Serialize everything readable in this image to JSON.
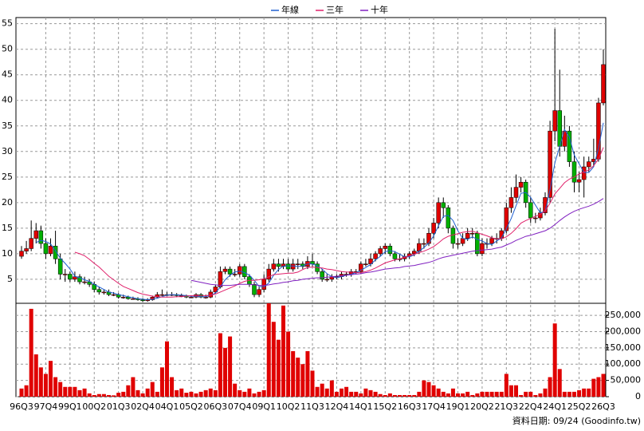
{
  "chart_data": {
    "type": "candlestick",
    "legend": "top",
    "grid": true,
    "note": "資料日期: 09/24 (Goodinfo.tw)",
    "up_color": "#e00000",
    "down_color": "#00b000",
    "volume_color": "#e00000",
    "categories": [
      "96Q3",
      null,
      null,
      null,
      null,
      "97Q4",
      null,
      null,
      null,
      null,
      "99Q1",
      null,
      null,
      null,
      null,
      "00Q2",
      null,
      null,
      null,
      null,
      "01Q3",
      null,
      null,
      null,
      null,
      "02Q4",
      null,
      null,
      null,
      null,
      "04Q1",
      null,
      null,
      null,
      null,
      "05Q2",
      null,
      null,
      null,
      null,
      "06Q3",
      null,
      null,
      null,
      null,
      "07Q4",
      null,
      null,
      null,
      null,
      "09Q1",
      null,
      null,
      null,
      null,
      "10Q2",
      null,
      null,
      null,
      null,
      "11Q3",
      null,
      null,
      null,
      null,
      "12Q4",
      null,
      null,
      null,
      null,
      "14Q1",
      null,
      null,
      null,
      null,
      "15Q2",
      null,
      null,
      null,
      null,
      "16Q3",
      null,
      null,
      null,
      null,
      "17Q4",
      null,
      null,
      null,
      null,
      "19Q1",
      null,
      null,
      null,
      null,
      "20Q2",
      null,
      null,
      null,
      null,
      "21Q3",
      null,
      null,
      null,
      null,
      "22Q4",
      null,
      null,
      null,
      null,
      "24Q1",
      null,
      null,
      null,
      null,
      "25Q2",
      null,
      null,
      null,
      null,
      "26Q3"
    ],
    "open": [
      9.5,
      10.5,
      11,
      13,
      14.5,
      12,
      10,
      11.5,
      9,
      6,
      6,
      5,
      5.5,
      4.5,
      4.5,
      4,
      3,
      2.5,
      2.5,
      2,
      2,
      1.5,
      1.5,
      1.2,
      1.2,
      1,
      0.8,
      1,
      1.5,
      2,
      2,
      2,
      2,
      1.8,
      1.8,
      1.5,
      1.5,
      2,
      1.5,
      1.5,
      2.5,
      3.5,
      6.5,
      7,
      6,
      6,
      7.5,
      5.5,
      4,
      2,
      3,
      5,
      7,
      8,
      7.5,
      8,
      7,
      8,
      8,
      7.5,
      8.5,
      8,
      6.5,
      5,
      5,
      5.5,
      5.5,
      6,
      6,
      6.5,
      6.5,
      8,
      8,
      9,
      10,
      11,
      11.5,
      10,
      9,
      9,
      9.5,
      10,
      10.5,
      12,
      12,
      14,
      16,
      20,
      19,
      15,
      12,
      12,
      13,
      14,
      14,
      10,
      12,
      12,
      13,
      13,
      14.5,
      19,
      21,
      23,
      24,
      20,
      17,
      17,
      18,
      21,
      34,
      38,
      31,
      34,
      28,
      24,
      24.5,
      27,
      28,
      28.5,
      39.5
    ],
    "high": [
      11.5,
      12.5,
      16.5,
      16,
      15.5,
      13,
      13,
      14.5,
      10,
      7,
      6.5,
      6.5,
      6,
      5.5,
      5,
      4.5,
      3.5,
      3,
      3,
      2.5,
      2.3,
      2,
      1.8,
      1.6,
      1.5,
      1.3,
      1.3,
      1.8,
      2.5,
      3,
      2.5,
      2.5,
      2.3,
      2.2,
      2,
      1.8,
      2.3,
      2.3,
      2,
      3,
      4,
      7.5,
      7.5,
      7.5,
      7,
      8,
      8,
      6,
      4.5,
      3.5,
      6,
      8,
      9,
      9,
      9,
      9,
      9,
      9,
      8.5,
      9.5,
      10,
      8.5,
      7,
      6,
      6,
      6,
      6.5,
      6.5,
      7,
      7,
      8.5,
      9,
      10,
      10.5,
      11.5,
      12,
      12,
      10.5,
      10,
      10,
      10.5,
      11,
      13,
      13,
      15,
      17,
      21,
      21,
      19.5,
      15.5,
      13,
      14,
      15,
      15,
      14.5,
      13,
      13,
      13.5,
      14,
      15,
      20,
      23,
      25.5,
      25,
      24.5,
      21,
      18,
      19,
      22,
      36,
      54,
      46,
      37,
      35,
      30,
      26,
      29,
      29,
      32.5,
      40.5,
      50
    ],
    "low": [
      9,
      10,
      10.5,
      12,
      11,
      9,
      9.5,
      8,
      5,
      4.5,
      4.5,
      4.5,
      4,
      4,
      3.5,
      2.5,
      2,
      2,
      1.7,
      1.7,
      1.2,
      1.2,
      1,
      1,
      0.8,
      0.6,
      0.6,
      0.8,
      1.3,
      1.7,
      1.7,
      1.7,
      1.5,
      1.5,
      1.3,
      1.3,
      1.3,
      1.3,
      1.2,
      1.3,
      2.2,
      3.2,
      6,
      5.5,
      5.5,
      5.5,
      5,
      3.5,
      1.5,
      1.5,
      2.5,
      4.5,
      6.5,
      6.5,
      7,
      6.5,
      6.5,
      7,
      7,
      7,
      7.5,
      6,
      4.5,
      4.5,
      4.5,
      5,
      5,
      5.5,
      5.5,
      6,
      6,
      7.5,
      7.5,
      8.5,
      9.5,
      10,
      9.5,
      8.5,
      8.5,
      8.5,
      9,
      9.5,
      10,
      11,
      11.5,
      13,
      15,
      17,
      14,
      11,
      11,
      11.5,
      12.5,
      13,
      9.5,
      9.5,
      11,
      11.5,
      12,
      12.5,
      14,
      18,
      20,
      22,
      19,
      16,
      16,
      16.5,
      17.5,
      20,
      32,
      29,
      30,
      27,
      22,
      22,
      21,
      26,
      27,
      28,
      39
    ],
    "close": [
      10.5,
      11,
      13,
      14.5,
      12,
      10,
      11.5,
      9,
      6,
      6,
      5,
      5.5,
      4.5,
      4.5,
      4,
      3,
      2.5,
      2.5,
      2,
      2,
      1.5,
      1.5,
      1.2,
      1.2,
      1,
      0.8,
      1,
      1.5,
      2,
      2,
      2,
      2,
      1.8,
      1.8,
      1.5,
      1.5,
      2,
      1.5,
      1.5,
      2.5,
      3.5,
      6.5,
      7,
      6,
      6,
      7.5,
      5.5,
      4,
      2,
      3,
      5,
      7,
      8,
      7.5,
      8,
      7,
      8,
      8,
      7.5,
      8.5,
      8,
      6.5,
      5,
      5,
      5.5,
      5.5,
      6,
      6,
      6.5,
      6.5,
      8,
      8,
      9,
      10,
      11,
      11.5,
      10,
      9,
      9,
      9.5,
      10,
      10.5,
      12,
      12,
      14,
      16,
      20,
      19,
      15,
      12,
      12,
      13,
      14,
      14,
      10,
      12,
      12,
      13,
      13,
      14.5,
      19,
      21,
      23,
      24,
      20,
      17,
      17,
      18,
      21,
      34,
      38,
      31,
      34,
      28,
      24,
      24.5,
      27,
      28,
      28.5,
      39.5,
      47
    ],
    "volume": [
      25000,
      35000,
      270000,
      130000,
      90000,
      70000,
      110000,
      60000,
      45000,
      30000,
      30000,
      30000,
      20000,
      25000,
      10000,
      5000,
      8000,
      8000,
      5000,
      4000,
      12000,
      15000,
      35000,
      60000,
      20000,
      10000,
      25000,
      45000,
      15000,
      90000,
      170000,
      60000,
      20000,
      25000,
      12000,
      15000,
      10000,
      15000,
      20000,
      25000,
      20000,
      195000,
      150000,
      185000,
      40000,
      20000,
      15000,
      25000,
      10000,
      15000,
      20000,
      287000,
      230000,
      175000,
      280000,
      200000,
      140000,
      120000,
      100000,
      140000,
      80000,
      30000,
      40000,
      25000,
      50000,
      15000,
      25000,
      30000,
      15000,
      15000,
      10000,
      25000,
      20000,
      15000,
      8000,
      5000,
      10000,
      5000,
      5000,
      5000,
      5000,
      5000,
      15000,
      50000,
      45000,
      35000,
      25000,
      15000,
      10000,
      25000,
      10000,
      10000,
      15000,
      5000,
      10000,
      15000,
      15000,
      15000,
      15000,
      15000,
      70000,
      35000,
      35000,
      5000,
      15000,
      15000,
      5000,
      10000,
      25000,
      60000,
      225000,
      85000,
      15000,
      15000,
      15000,
      20000,
      25000,
      25000,
      55000,
      60000,
      70000
    ],
    "series": [
      {
        "name": "年線",
        "color": "#2060d0",
        "values": [
          null,
          null,
          null,
          12.2,
          12.6,
          12.4,
          11.9,
          10.6,
          9.1,
          8.1,
          7,
          5.6,
          5.3,
          4.9,
          4.6,
          4,
          3.5,
          3,
          2.5,
          2.3,
          2,
          1.8,
          1.6,
          1.4,
          1.2,
          1.1,
          1,
          1.1,
          1.3,
          1.6,
          1.9,
          2,
          1.95,
          1.9,
          1.8,
          1.65,
          1.7,
          1.6,
          1.6,
          1.9,
          2.3,
          3.5,
          4.9,
          5.8,
          6.4,
          6.6,
          6.3,
          5.8,
          4.8,
          3.6,
          3.5,
          4.3,
          5.8,
          6.9,
          7.6,
          7.6,
          7.6,
          7.5,
          7.6,
          8,
          8,
          7.6,
          7,
          6.1,
          5.5,
          5.3,
          5.5,
          5.8,
          6,
          6.3,
          6.8,
          7.3,
          7.9,
          8.8,
          9.5,
          10.4,
          10.6,
          10.4,
          9.9,
          9.4,
          9.4,
          9.8,
          10.5,
          11.2,
          12.1,
          13.5,
          15.5,
          17.3,
          17.5,
          16.5,
          14.5,
          13,
          12.8,
          13.3,
          12.8,
          12.5,
          12,
          11.8,
          12.5,
          13.1,
          14.9,
          16.9,
          19.4,
          21.8,
          22,
          21,
          19.5,
          18,
          18.3,
          22.5,
          27.8,
          31,
          34.3,
          32.8,
          29.3,
          27.6,
          25.9,
          25.9,
          27,
          30.6,
          35.6
        ]
      },
      {
        "name": "三年",
        "color": "#e0206a",
        "values": [
          null,
          null,
          null,
          null,
          null,
          null,
          null,
          null,
          null,
          null,
          null,
          10.3,
          10,
          9.6,
          8.9,
          8.1,
          7.4,
          6.5,
          5.6,
          4.9,
          4.2,
          3.6,
          3.2,
          2.8,
          2.4,
          2.1,
          1.9,
          1.7,
          1.6,
          1.5,
          1.5,
          1.5,
          1.6,
          1.6,
          1.7,
          1.8,
          1.8,
          1.8,
          1.8,
          1.9,
          2.1,
          2.5,
          2.9,
          3.3,
          3.7,
          4.2,
          4.6,
          4.8,
          4.8,
          4.9,
          5.1,
          5.5,
          5.9,
          6,
          6.1,
          6.2,
          6.2,
          6.4,
          6.9,
          7.3,
          7.4,
          7.3,
          7.2,
          7,
          6.9,
          6.7,
          6.5,
          6.4,
          6.4,
          6.3,
          6.3,
          6.5,
          6.8,
          7.2,
          7.7,
          8.2,
          8.5,
          8.8,
          9,
          9.3,
          9.6,
          9.9,
          10.2,
          10.5,
          10.9,
          11.4,
          12.1,
          12.9,
          13.4,
          13.7,
          13.9,
          14.2,
          14.3,
          14.4,
          14.1,
          13.8,
          13.5,
          13.1,
          12.9,
          12.9,
          13.3,
          14,
          14.9,
          16,
          16.5,
          16.9,
          17.3,
          17.7,
          18.4,
          19.9,
          21.7,
          22.8,
          23.9,
          24.6,
          25,
          25.6,
          26,
          26.4,
          27.2,
          28.5,
          30.8
        ]
      },
      {
        "name": "十年",
        "color": "#8020c0",
        "values": [
          null,
          null,
          null,
          null,
          null,
          null,
          null,
          null,
          null,
          null,
          null,
          null,
          null,
          null,
          null,
          null,
          null,
          null,
          null,
          null,
          null,
          null,
          null,
          null,
          null,
          null,
          null,
          null,
          null,
          null,
          null,
          null,
          null,
          null,
          null,
          4.8,
          4.6,
          4.4,
          4.2,
          4,
          3.9,
          3.8,
          3.8,
          3.8,
          3.9,
          4,
          4,
          4,
          3.9,
          3.8,
          3.8,
          3.9,
          4.1,
          4.2,
          4.4,
          4.5,
          4.7,
          4.8,
          5,
          5.1,
          5.2,
          5.3,
          5.3,
          5.4,
          5.5,
          5.6,
          5.7,
          5.8,
          5.9,
          6,
          6.1,
          6.3,
          6.4,
          6.6,
          6.8,
          7,
          7.1,
          7.2,
          7.3,
          7.5,
          7.6,
          7.7,
          7.9,
          8.1,
          8.3,
          8.6,
          9,
          9.3,
          9.5,
          9.7,
          9.9,
          10.1,
          10.3,
          10.5,
          10.6,
          10.7,
          10.8,
          10.9,
          11.1,
          11.3,
          11.7,
          12.1,
          12.6,
          13,
          13.4,
          13.6,
          13.9,
          14.2,
          14.5,
          15,
          15.7,
          16.5,
          17.2,
          17.8,
          18.3,
          18.7,
          19,
          19.3,
          19.7,
          20.2,
          20.8
        ]
      }
    ],
    "ylim": [
      0.3,
      56.2
    ],
    "yticks": [
      5,
      10,
      15,
      20,
      25,
      30,
      35,
      40,
      45,
      50,
      55
    ],
    "y2lim": [
      0,
      287000
    ],
    "y2ticks": [
      0,
      {
        "value": 50000,
        "label": "50,000"
      },
      {
        "value": 100000,
        "label": "100,000"
      },
      {
        "value": 150000,
        "label": "150,000"
      },
      {
        "value": 200000,
        "label": "200,000"
      },
      {
        "value": 250000,
        "label": "250,000"
      }
    ]
  }
}
